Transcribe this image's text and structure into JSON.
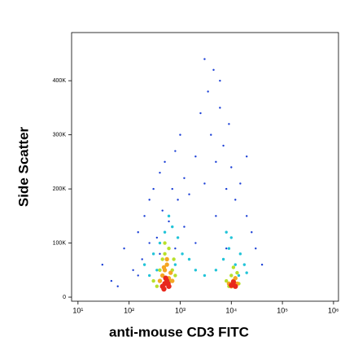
{
  "chart_data": {
    "type": "scatter",
    "x_label": "anti-mouse CD3 FITC",
    "y_label": "Side Scatter",
    "xscale": "log",
    "xlim": [
      7.5,
      1250000
    ],
    "xticks": [
      {
        "value": 10,
        "label": "10¹"
      },
      {
        "value": 100,
        "label": "10²"
      },
      {
        "value": 1000,
        "label": "10³"
      },
      {
        "value": 10000,
        "label": "10⁴"
      },
      {
        "value": 100000,
        "label": "10⁵"
      },
      {
        "value": 1000000,
        "label": "10⁶"
      }
    ],
    "ylim": [
      -7500,
      489000
    ],
    "yticks": [
      0,
      {
        "value": 100000,
        "label": "100K"
      },
      {
        "value": 200000,
        "label": "200K"
      },
      {
        "value": 300000,
        "label": "300K"
      },
      {
        "value": 400000,
        "label": "400K"
      }
    ],
    "series": [
      {
        "color": "#1a3fd6",
        "x": [
          30,
          45,
          60,
          80,
          120,
          150,
          180,
          200,
          250,
          300,
          350,
          400,
          450,
          500,
          600,
          700,
          800,
          900,
          1000,
          1200,
          1500,
          2000,
          2500,
          3000,
          3500,
          4000,
          5000,
          6000,
          7000,
          8000,
          9000,
          10000,
          12000,
          15000,
          20000,
          25000,
          30000,
          40000,
          3000,
          4500,
          6000,
          800,
          1200,
          2000,
          5000,
          8000,
          400,
          250,
          150,
          20000
        ],
        "y": [
          60000,
          30000,
          20000,
          90000,
          50000,
          120000,
          70000,
          150000,
          180000,
          200000,
          110000,
          230000,
          160000,
          250000,
          140000,
          200000,
          270000,
          180000,
          300000,
          220000,
          190000,
          260000,
          340000,
          210000,
          380000,
          300000,
          250000,
          350000,
          280000,
          200000,
          320000,
          240000,
          180000,
          210000,
          150000,
          120000,
          90000,
          60000,
          440000,
          420000,
          400000,
          90000,
          130000,
          100000,
          150000,
          90000,
          80000,
          100000,
          40000,
          260000
        ]
      },
      {
        "color": "#22c4d8",
        "x": [
          200,
          300,
          400,
          500,
          600,
          700,
          900,
          1100,
          1500,
          250,
          350,
          800,
          5000,
          7000,
          9000,
          12000,
          15000,
          18000,
          20000,
          10000,
          8000,
          14000,
          3000,
          2000,
          600
        ],
        "y": [
          60000,
          80000,
          100000,
          120000,
          90000,
          130000,
          110000,
          80000,
          70000,
          40000,
          50000,
          60000,
          50000,
          70000,
          90000,
          60000,
          80000,
          60000,
          45000,
          110000,
          120000,
          40000,
          40000,
          50000,
          150000
        ]
      },
      {
        "color": "#b8e02a",
        "x": [
          300,
          400,
          450,
          500,
          550,
          600,
          700,
          800,
          350,
          650,
          8000,
          10000,
          12000,
          14000,
          9000,
          11000,
          13000,
          500,
          450,
          750
        ],
        "y": [
          30000,
          50000,
          70000,
          80000,
          60000,
          90000,
          50000,
          40000,
          20000,
          30000,
          30000,
          40000,
          35000,
          25000,
          20000,
          55000,
          45000,
          100000,
          20000,
          70000
        ]
      },
      {
        "color": "#f5a623",
        "x": [
          400,
          450,
          500,
          550,
          600,
          650,
          700,
          500,
          550,
          9000,
          11000,
          12000,
          10000,
          13000,
          480
        ],
        "y": [
          30000,
          40000,
          50000,
          60000,
          35000,
          45000,
          30000,
          25000,
          70000,
          25000,
          30000,
          35000,
          20000,
          25000,
          55000
        ]
      },
      {
        "color": "#e8281c",
        "x": [
          450,
          500,
          550,
          600,
          520,
          480,
          580,
          10000,
          11000,
          12000
        ],
        "y": [
          20000,
          25000,
          30000,
          20000,
          35000,
          15000,
          25000,
          22000,
          28000,
          20000
        ]
      }
    ]
  }
}
